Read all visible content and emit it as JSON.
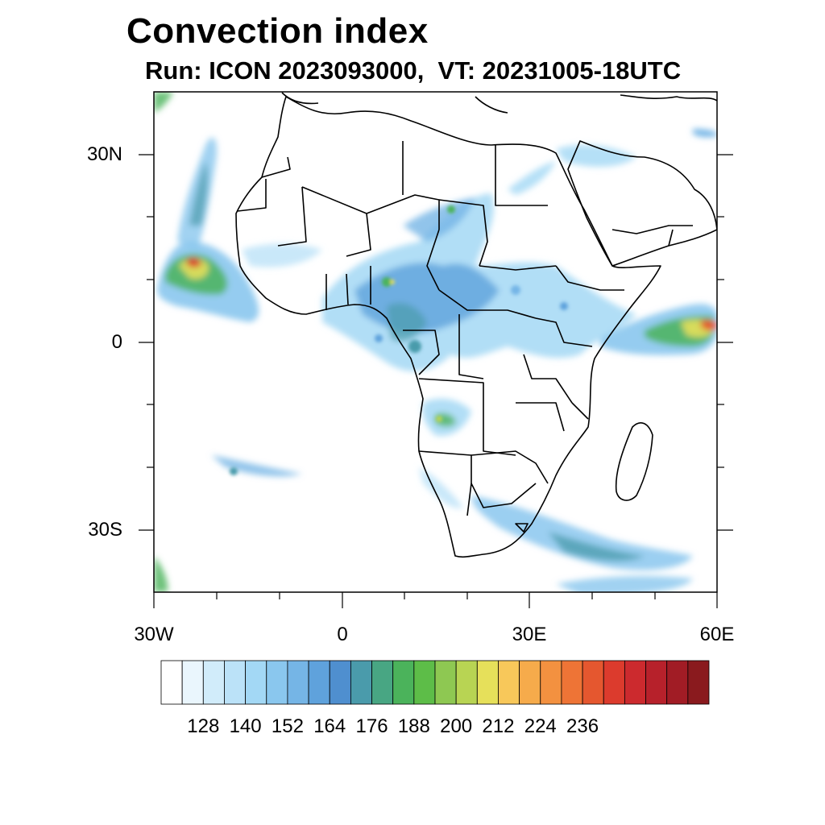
{
  "title": "Convection index",
  "subtitle": "Run: ICON 2023093000,  VT: 20231005-18UTC",
  "map": {
    "lon_range": [
      -30,
      60
    ],
    "lat_range": [
      -40,
      40
    ],
    "lat_ticks": [
      {
        "value": 30,
        "label": "30N"
      },
      {
        "value": 0,
        "label": "0"
      },
      {
        "value": -30,
        "label": "30S"
      }
    ],
    "lon_ticks": [
      {
        "value": -30,
        "label": "30W"
      },
      {
        "value": 0,
        "label": "0"
      },
      {
        "value": 30,
        "label": "30E"
      },
      {
        "value": 60,
        "label": "60E"
      }
    ],
    "minor_lon_ticks": [
      -20,
      -10,
      10,
      20,
      40,
      50
    ],
    "minor_lat_ticks": [
      20,
      10,
      -10,
      -20
    ]
  },
  "colorbar": {
    "colors": [
      "#ffffff",
      "#eaf6fd",
      "#d1ecfa",
      "#bbe2f8",
      "#a3d8f5",
      "#8ac7ee",
      "#75b5e6",
      "#5fa2dc",
      "#4f8fcf",
      "#4a9bab",
      "#48a683",
      "#4bb35b",
      "#5dbd48",
      "#8ec852",
      "#b8d453",
      "#e6e05a",
      "#f8c85a",
      "#f6ab4b",
      "#f39140",
      "#ee7436",
      "#e5572f",
      "#dc3b2d",
      "#cc2a2e",
      "#b7212b",
      "#a11c25",
      "#8a1a1e"
    ],
    "labels": [
      "128",
      "140",
      "152",
      "164",
      "176",
      "188",
      "200",
      "212",
      "224",
      "236"
    ]
  }
}
